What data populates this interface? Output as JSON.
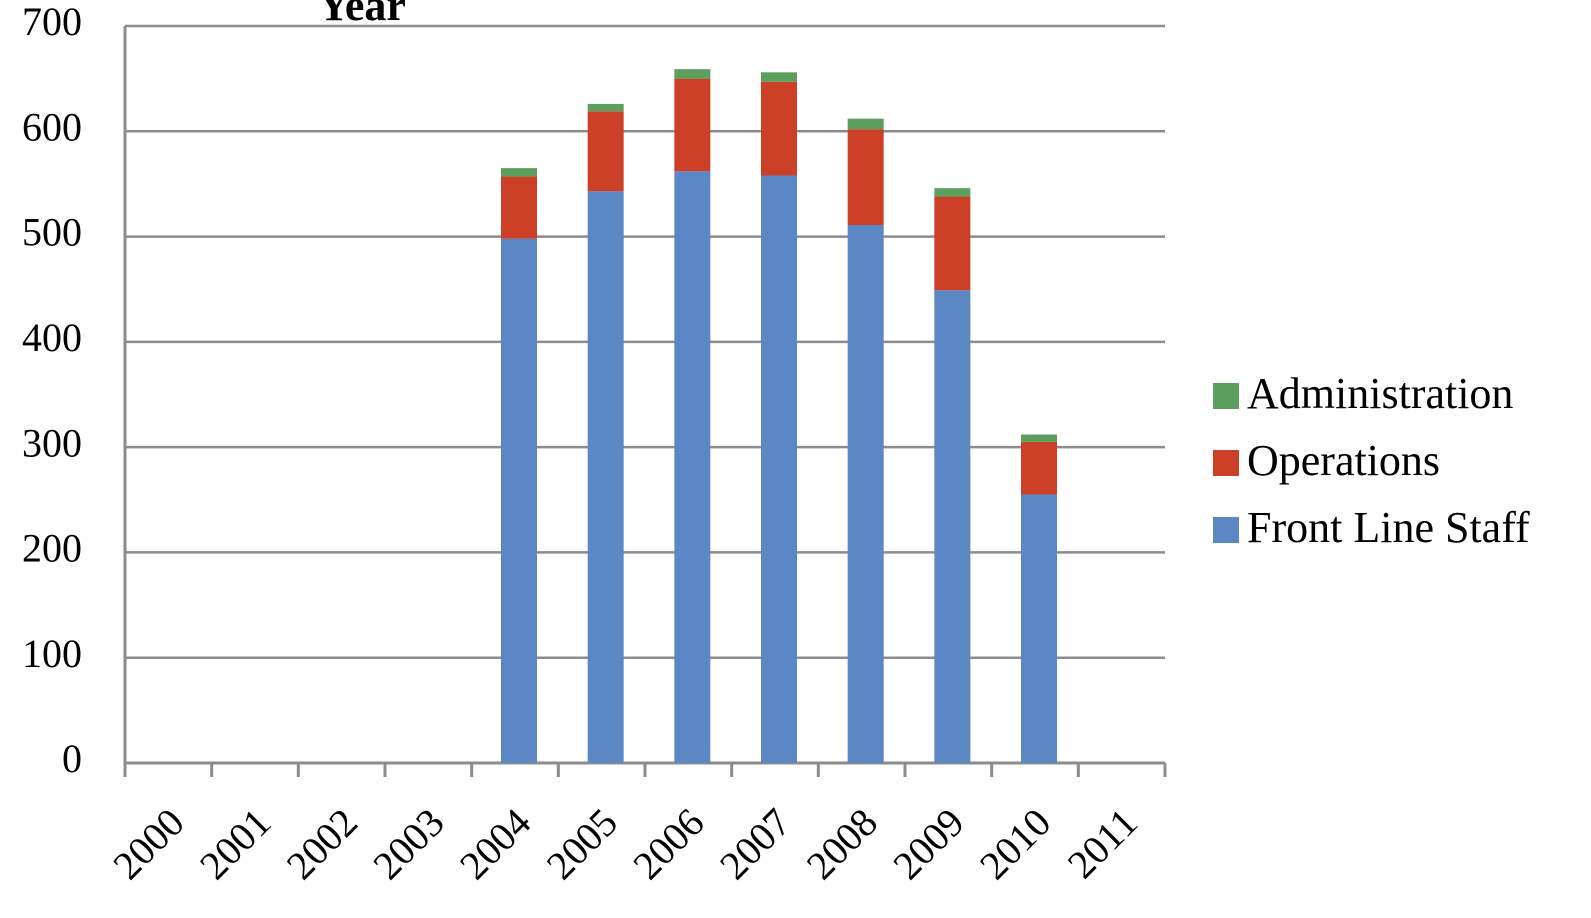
{
  "chart_data": {
    "type": "bar",
    "stacked": true,
    "title": "Year",
    "categories": [
      "2000",
      "2001",
      "2002",
      "2003",
      "2004",
      "2005",
      "2006",
      "2007",
      "2008",
      "2009",
      "2010",
      "2011"
    ],
    "series": [
      {
        "name": "Front Line Staff",
        "color": "#5b87c5",
        "values": [
          0,
          0,
          0,
          0,
          498,
          543,
          562,
          558,
          511,
          449,
          255,
          0
        ]
      },
      {
        "name": "Operations",
        "color": "#cc4027",
        "values": [
          0,
          0,
          0,
          0,
          59,
          76,
          88,
          89,
          91,
          89,
          50,
          0
        ]
      },
      {
        "name": "Administration",
        "color": "#5b9e5e",
        "values": [
          0,
          0,
          0,
          0,
          8,
          7,
          9,
          9,
          10,
          8,
          7,
          0
        ]
      }
    ],
    "ylim": [
      0,
      700
    ],
    "yticks": [
      "0",
      "100",
      "200",
      "300",
      "400",
      "500",
      "600",
      "700"
    ],
    "grid": true,
    "legend_position": "right",
    "legend_order": [
      "Administration",
      "Operations",
      "Front Line Staff"
    ]
  }
}
